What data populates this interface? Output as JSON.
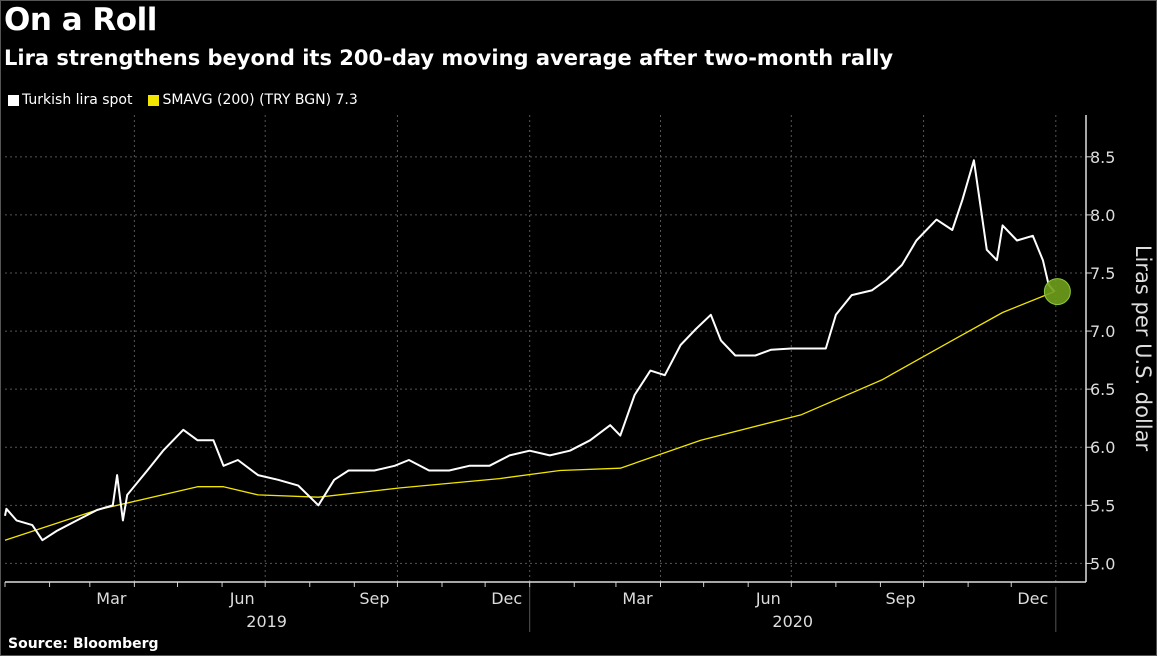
{
  "header": {
    "title": "On a Roll",
    "subtitle": "Lira strengthens beyond its 200-day moving average after two-month rally"
  },
  "legend": {
    "items": [
      {
        "label": "Turkish lira spot",
        "color": "#ffffff"
      },
      {
        "label": "SMAVG (200) (TRY BGN) 7.3",
        "color": "#f2e600"
      }
    ]
  },
  "source": "Source: Bloomberg",
  "chart_data": {
    "type": "line",
    "title": "On a Roll",
    "subtitle": "Lira strengthens beyond its 200-day moving average after two-month rally",
    "ylabel": "Liras per U.S. dollar",
    "xlabel": "",
    "ylim": [
      4.84,
      8.86
    ],
    "xlim": [
      "2019-01-01",
      "2021-01-22"
    ],
    "y_ticks": [
      "5.0",
      "5.5",
      "6.0",
      "6.5",
      "7.0",
      "7.5",
      "8.0",
      "8.5"
    ],
    "y_axis_side": "right",
    "x_month_ticks": [
      {
        "label": "Mar",
        "date": "2019-03-16"
      },
      {
        "label": "Jun",
        "date": "2019-06-15"
      },
      {
        "label": "Sep",
        "date": "2019-09-15"
      },
      {
        "label": "Dec",
        "date": "2019-12-16"
      },
      {
        "label": "Mar",
        "date": "2020-03-16"
      },
      {
        "label": "Jun",
        "date": "2020-06-15"
      },
      {
        "label": "Sep",
        "date": "2020-09-15"
      },
      {
        "label": "Dec",
        "date": "2020-12-16"
      }
    ],
    "x_year_labels": [
      {
        "label": "2019",
        "date": "2019-07-02"
      },
      {
        "label": "2020",
        "date": "2020-07-02"
      }
    ],
    "grid": true,
    "legend_position": "top-left",
    "series": [
      {
        "name": "Turkish lira spot",
        "color": "#ffffff",
        "points": [
          [
            "2019-01-01",
            5.41
          ],
          [
            "2019-01-02",
            5.47
          ],
          [
            "2019-01-09",
            5.37
          ],
          [
            "2019-01-20",
            5.33
          ],
          [
            "2019-01-27",
            5.2
          ],
          [
            "2019-02-06",
            5.28
          ],
          [
            "2019-02-20",
            5.37
          ],
          [
            "2019-03-06",
            5.46
          ],
          [
            "2019-03-17",
            5.5
          ],
          [
            "2019-03-20",
            5.76
          ],
          [
            "2019-03-24",
            5.37
          ],
          [
            "2019-03-27",
            5.59
          ],
          [
            "2019-04-10",
            5.8
          ],
          [
            "2019-04-21",
            5.97
          ],
          [
            "2019-05-05",
            6.15
          ],
          [
            "2019-05-15",
            6.06
          ],
          [
            "2019-05-26",
            6.06
          ],
          [
            "2019-06-02",
            5.84
          ],
          [
            "2019-06-12",
            5.89
          ],
          [
            "2019-06-26",
            5.76
          ],
          [
            "2019-07-10",
            5.72
          ],
          [
            "2019-07-24",
            5.67
          ],
          [
            "2019-08-07",
            5.5
          ],
          [
            "2019-08-18",
            5.72
          ],
          [
            "2019-08-28",
            5.8
          ],
          [
            "2019-09-15",
            5.8
          ],
          [
            "2019-09-29",
            5.84
          ],
          [
            "2019-10-09",
            5.89
          ],
          [
            "2019-10-23",
            5.8
          ],
          [
            "2019-11-06",
            5.8
          ],
          [
            "2019-11-20",
            5.84
          ],
          [
            "2019-12-04",
            5.84
          ],
          [
            "2019-12-18",
            5.93
          ],
          [
            "2020-01-01",
            5.97
          ],
          [
            "2020-01-15",
            5.93
          ],
          [
            "2020-01-29",
            5.97
          ],
          [
            "2020-02-12",
            6.06
          ],
          [
            "2020-02-26",
            6.19
          ],
          [
            "2020-03-04",
            6.1
          ],
          [
            "2020-03-14",
            6.45
          ],
          [
            "2020-03-25",
            6.66
          ],
          [
            "2020-04-04",
            6.62
          ],
          [
            "2020-04-15",
            6.88
          ],
          [
            "2020-04-25",
            7.01
          ],
          [
            "2020-05-06",
            7.14
          ],
          [
            "2020-05-13",
            6.92
          ],
          [
            "2020-05-23",
            6.79
          ],
          [
            "2020-06-06",
            6.79
          ],
          [
            "2020-06-17",
            6.84
          ],
          [
            "2020-07-01",
            6.85
          ],
          [
            "2020-07-15",
            6.85
          ],
          [
            "2020-07-25",
            6.85
          ],
          [
            "2020-08-01",
            7.14
          ],
          [
            "2020-08-12",
            7.31
          ],
          [
            "2020-08-26",
            7.35
          ],
          [
            "2020-09-05",
            7.44
          ],
          [
            "2020-09-16",
            7.57
          ],
          [
            "2020-09-26",
            7.78
          ],
          [
            "2020-10-10",
            7.96
          ],
          [
            "2020-10-21",
            7.87
          ],
          [
            "2020-10-28",
            8.13
          ],
          [
            "2020-11-05",
            8.47
          ],
          [
            "2020-11-09",
            8.13
          ],
          [
            "2020-11-14",
            7.7
          ],
          [
            "2020-11-21",
            7.61
          ],
          [
            "2020-11-25",
            7.91
          ],
          [
            "2020-12-05",
            7.78
          ],
          [
            "2020-12-16",
            7.82
          ],
          [
            "2020-12-23",
            7.61
          ],
          [
            "2020-12-27",
            7.4
          ],
          [
            "2020-12-31",
            7.34
          ]
        ]
      },
      {
        "name": "SMAVG (200) (TRY BGN) 7.3",
        "color": "#f2e600",
        "points": [
          [
            "2019-01-01",
            5.2
          ],
          [
            "2019-03-06",
            5.46
          ],
          [
            "2019-05-15",
            5.66
          ],
          [
            "2019-06-02",
            5.66
          ],
          [
            "2019-06-26",
            5.59
          ],
          [
            "2019-08-07",
            5.57
          ],
          [
            "2019-10-03",
            5.65
          ],
          [
            "2019-12-11",
            5.73
          ],
          [
            "2020-01-22",
            5.8
          ],
          [
            "2020-03-04",
            5.82
          ],
          [
            "2020-04-29",
            6.06
          ],
          [
            "2020-07-08",
            6.28
          ],
          [
            "2020-09-02",
            6.58
          ],
          [
            "2020-10-21",
            6.92
          ],
          [
            "2020-11-25",
            7.16
          ],
          [
            "2020-12-31",
            7.34
          ]
        ]
      }
    ],
    "highlight_marker": {
      "date": "2020-12-31",
      "value": 7.34,
      "color": "#6f9e1c"
    }
  }
}
